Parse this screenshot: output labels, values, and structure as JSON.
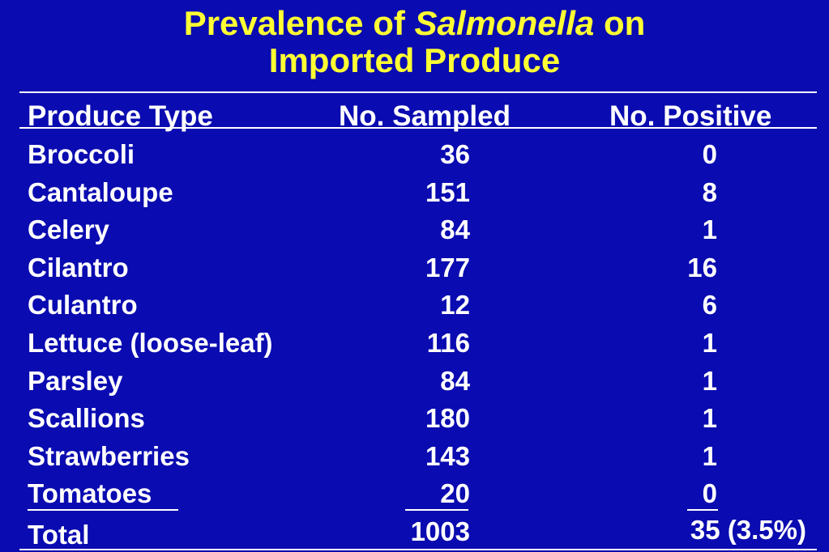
{
  "title": {
    "line1_part1": "Prevalence of",
    "line1_italic": "Salmonella",
    "line1_part2": "on",
    "line2": "Imported Produce"
  },
  "columns": {
    "produce_type": "Produce Type",
    "no_sampled": "No. Sampled",
    "no_positive": "No. Positive"
  },
  "rows": [
    {
      "produce": "Broccoli",
      "sampled": "36",
      "positive": "0"
    },
    {
      "produce": "Cantaloupe",
      "sampled": "151",
      "positive": "8"
    },
    {
      "produce": "Celery",
      "sampled": "84",
      "positive": "1"
    },
    {
      "produce": "Cilantro",
      "sampled": "177",
      "positive": "16"
    },
    {
      "produce": "Culantro",
      "sampled": "12",
      "positive": "6"
    },
    {
      "produce": "Lettuce (loose-leaf)",
      "sampled": "116",
      "positive": "1"
    },
    {
      "produce": "Parsley",
      "sampled": "84",
      "positive": "1"
    },
    {
      "produce": "Scallions",
      "sampled": "180",
      "positive": "1"
    },
    {
      "produce": "Strawberries",
      "sampled": "143",
      "positive": "1"
    },
    {
      "produce": "Tomatoes",
      "sampled": "20",
      "positive": "0"
    }
  ],
  "total": {
    "label": "Total",
    "sampled": "1003",
    "positive": "35 (3.5%)"
  },
  "colors": {
    "background": "#0a0bb0",
    "title": "#ffff33",
    "text": "#ffffff"
  }
}
